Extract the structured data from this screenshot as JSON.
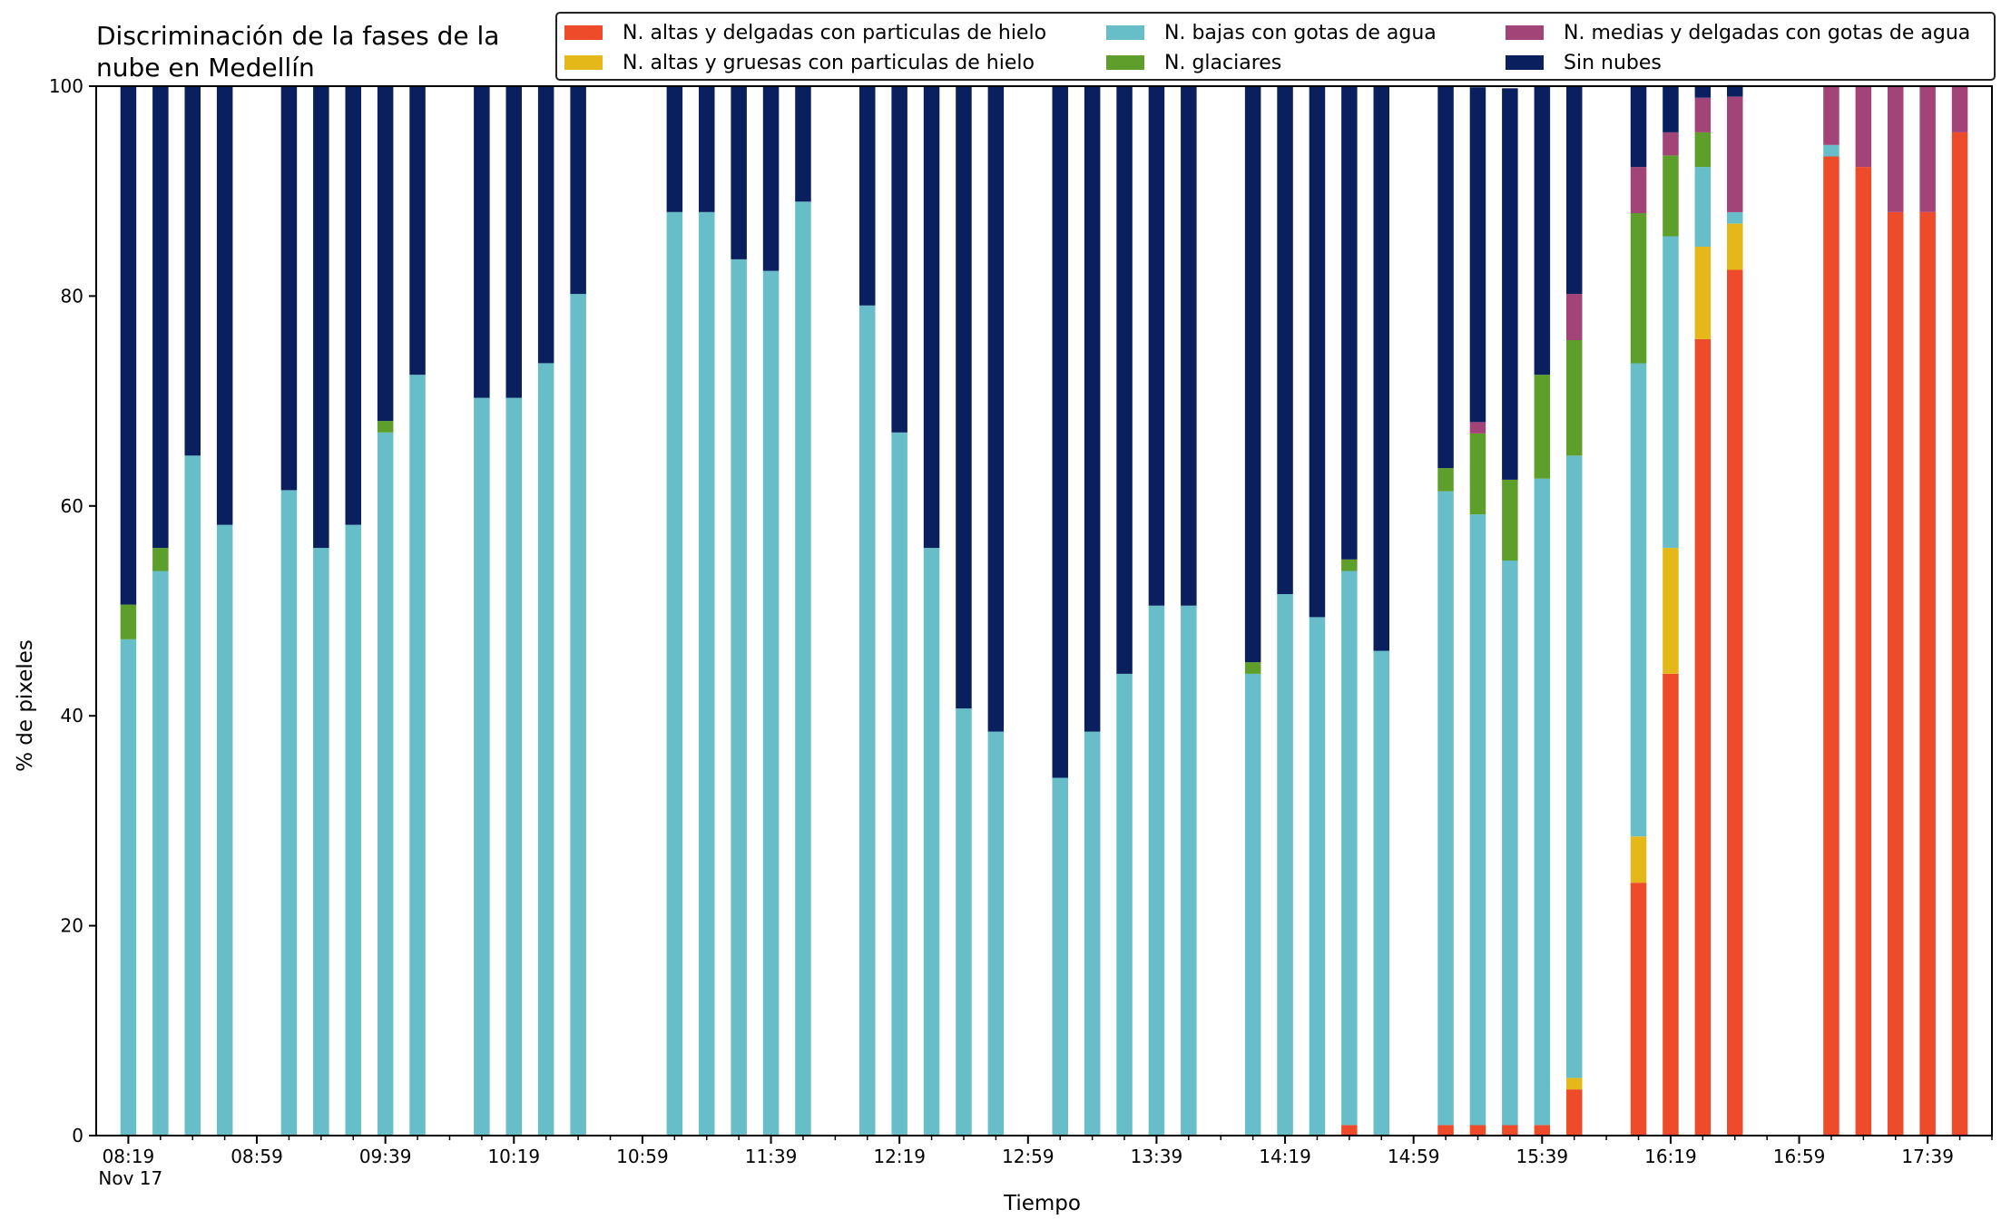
{
  "chart_data": {
    "type": "bar",
    "stacked": true,
    "title": "Discriminación de la fases de la\nnube en Medellín",
    "xlabel": "Tiempo",
    "ylabel": "% de pixeles",
    "ylim": [
      0,
      100
    ],
    "yticks": [
      0,
      20,
      40,
      60,
      80,
      100
    ],
    "xlim_minutes": [
      -10,
      580
    ],
    "xticks": [
      {
        "min": 0,
        "label": "08:19\nNov 17"
      },
      {
        "min": 40,
        "label": "08:59"
      },
      {
        "min": 80,
        "label": "09:39"
      },
      {
        "min": 120,
        "label": "10:19"
      },
      {
        "min": 160,
        "label": "10:59"
      },
      {
        "min": 200,
        "label": "11:39"
      },
      {
        "min": 240,
        "label": "12:19"
      },
      {
        "min": 280,
        "label": "12:59"
      },
      {
        "min": 320,
        "label": "13:39"
      },
      {
        "min": 360,
        "label": "14:19"
      },
      {
        "min": 400,
        "label": "14:59"
      },
      {
        "min": 440,
        "label": "15:39"
      },
      {
        "min": 480,
        "label": "16:19"
      },
      {
        "min": 520,
        "label": "16:59"
      },
      {
        "min": 560,
        "label": "17:39"
      }
    ],
    "legend_position": "top",
    "x": [
      "08:19",
      "08:29",
      "08:39",
      "08:49",
      "09:09",
      "09:19",
      "09:29",
      "09:39",
      "09:49",
      "10:09",
      "10:19",
      "10:29",
      "10:39",
      "11:09",
      "11:19",
      "11:29",
      "11:39",
      "11:49",
      "12:09",
      "12:19",
      "12:29",
      "12:39",
      "12:49",
      "13:09",
      "13:19",
      "13:29",
      "13:39",
      "13:49",
      "14:09",
      "14:19",
      "14:29",
      "14:39",
      "14:49",
      "15:09",
      "15:19",
      "15:29",
      "15:39",
      "15:49",
      "16:09",
      "16:19",
      "16:29",
      "16:39",
      "17:09",
      "17:19",
      "17:29",
      "17:39",
      "17:49"
    ],
    "series": [
      {
        "name": "N. altas y delgadas con particulas de hielo",
        "color": "#EE4B2B",
        "values": [
          0,
          0,
          0,
          0,
          0,
          0,
          0,
          0,
          0,
          0,
          0,
          0,
          0,
          0,
          0,
          0,
          0,
          0,
          0,
          0,
          0,
          0,
          0,
          0,
          0,
          0,
          0,
          0,
          0,
          0,
          0,
          1,
          0,
          1,
          1,
          1,
          1,
          4.4,
          24.1,
          44,
          75.9,
          82.5,
          93.3,
          92.3,
          88,
          88,
          95.6
        ]
      },
      {
        "name": "N. altas y gruesas con particulas de hielo",
        "color": "#E5B81A",
        "values": [
          0,
          0,
          0,
          0,
          0,
          0,
          0,
          0,
          0,
          0,
          0,
          0,
          0,
          0,
          0,
          0,
          0,
          0,
          0,
          0,
          0,
          0,
          0,
          0,
          0,
          0,
          0,
          0,
          0,
          0,
          0,
          0,
          0,
          0,
          0,
          0,
          0,
          1.1,
          4.4,
          12,
          8.8,
          4.4,
          0,
          0,
          0,
          0,
          0
        ]
      },
      {
        "name": "N. bajas con gotas de agua",
        "color": "#67BEC9",
        "values": [
          47.3,
          53.8,
          64.8,
          58.2,
          61.5,
          56,
          58.2,
          67,
          72.5,
          70.3,
          70.3,
          73.6,
          80.2,
          88,
          88,
          83.5,
          82.4,
          89,
          79.1,
          67,
          56,
          40.7,
          38.5,
          34.1,
          38.5,
          44,
          50.5,
          50.5,
          44,
          51.6,
          49.4,
          52.8,
          46.2,
          60.4,
          58.2,
          53.8,
          61.6,
          59.3,
          45.1,
          29.7,
          7.6,
          1.1,
          1.1,
          0,
          0,
          0,
          0
        ]
      },
      {
        "name": "N. glaciares",
        "color": "#5E9F2C",
        "values": [
          3.3,
          2.2,
          0,
          0,
          0,
          0,
          0,
          1.1,
          0,
          0,
          0,
          0,
          0,
          0,
          0,
          0,
          0,
          0,
          0,
          0,
          0,
          0,
          0,
          0,
          0,
          0,
          0,
          0,
          1.1,
          0,
          0,
          1.1,
          0,
          2.2,
          7.7,
          7.7,
          9.9,
          11,
          14.3,
          7.7,
          3.3,
          0,
          0,
          0,
          0,
          0,
          0
        ]
      },
      {
        "name": "N. medias y delgadas con gotas de agua",
        "color": "#A34478",
        "values": [
          0,
          0,
          0,
          0,
          0,
          0,
          0,
          0,
          0,
          0,
          0,
          0,
          0,
          0,
          0,
          0,
          0,
          0,
          0,
          0,
          0,
          0,
          0,
          0,
          0,
          0,
          0,
          0,
          0,
          0,
          0,
          0,
          0,
          0,
          1.1,
          0,
          0,
          4.4,
          4.4,
          2.2,
          3.3,
          11,
          5.6,
          7.7,
          12,
          12,
          4.4
        ]
      },
      {
        "name": "Sin nubes",
        "color": "#0A1F5E",
        "values": [
          49.4,
          44,
          35.2,
          41.8,
          38.5,
          44,
          41.8,
          31.9,
          27.5,
          29.7,
          29.7,
          26.4,
          19.8,
          12,
          12,
          16.5,
          17.6,
          11,
          20.9,
          33,
          44,
          59.3,
          61.5,
          65.9,
          61.5,
          56,
          49.5,
          49.5,
          54.9,
          48.4,
          50.6,
          45.1,
          53.8,
          36.4,
          31.9,
          37.3,
          27.5,
          19.8,
          7.7,
          4.4,
          1.1,
          1.1,
          0,
          0,
          0,
          0,
          0
        ]
      }
    ]
  }
}
